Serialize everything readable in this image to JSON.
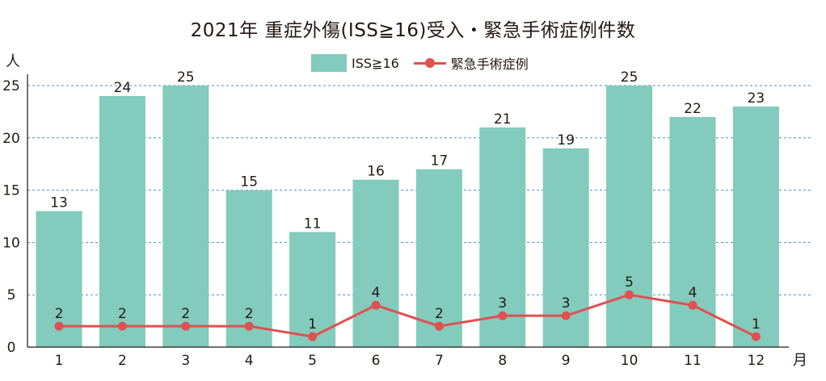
{
  "chart_data": {
    "type": "bar",
    "title": "2021年 重症外傷(ISS≧16)受入・緊急手術症例件数",
    "ylabel": "人",
    "xlabel": "月",
    "categories": [
      "1",
      "2",
      "3",
      "4",
      "5",
      "6",
      "7",
      "8",
      "9",
      "10",
      "11",
      "12"
    ],
    "ylim": [
      0,
      25
    ],
    "yticks": [
      0,
      5,
      10,
      15,
      20,
      25
    ],
    "grid": true,
    "legend_position": "top",
    "series": [
      {
        "name": "ISS≧16",
        "type": "bar",
        "color": "#82cbbd",
        "values": [
          13,
          24,
          25,
          15,
          11,
          16,
          17,
          21,
          19,
          25,
          22,
          23
        ]
      },
      {
        "name": "緊急手術症例",
        "type": "line",
        "color": "#e0504e",
        "values": [
          2,
          2,
          2,
          2,
          1,
          4,
          2,
          3,
          3,
          5,
          4,
          1
        ]
      }
    ]
  }
}
